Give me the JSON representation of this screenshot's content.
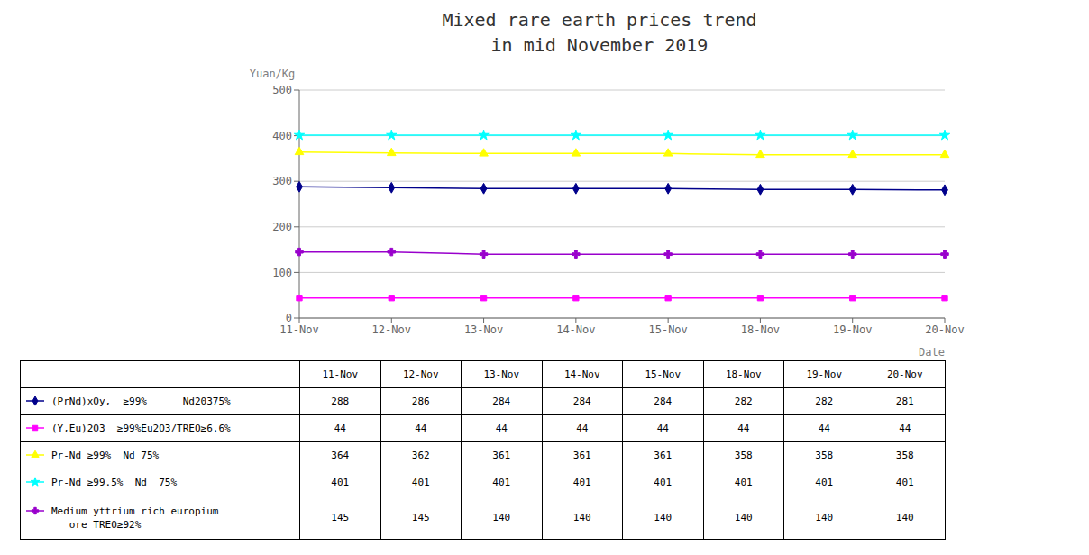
{
  "chart_data": {
    "type": "line",
    "title": "Mixed rare earth prices trend\nin mid November 2019",
    "x_label": "Date",
    "y_label": "Yuan/Kg",
    "categories": [
      "11-Nov",
      "12-Nov",
      "13-Nov",
      "14-Nov",
      "15-Nov",
      "18-Nov",
      "19-Nov",
      "20-Nov"
    ],
    "series": [
      {
        "name": "(PrNd)xOy,  ≥99%      Nd20375%",
        "color": "#00008B",
        "marker": "diamond",
        "values": [
          288,
          286,
          284,
          284,
          284,
          282,
          282,
          281
        ]
      },
      {
        "name": "(Y,Eu)2O3  ≥99%Eu2O3/TREO≥6.6%",
        "color": "#ff00ff",
        "marker": "square",
        "values": [
          44,
          44,
          44,
          44,
          44,
          44,
          44,
          44
        ]
      },
      {
        "name": "Pr-Nd ≥99%  Nd 75%",
        "color": "#ffff00",
        "marker": "triangle",
        "values": [
          364,
          362,
          361,
          361,
          361,
          358,
          358,
          358
        ]
      },
      {
        "name": "Pr-Nd ≥99.5%  Nd  75%",
        "color": "#00ffff",
        "marker": "star",
        "values": [
          401,
          401,
          401,
          401,
          401,
          401,
          401,
          401
        ]
      },
      {
        "name": "Medium yttrium rich europium\n   ore TREO≥92%",
        "color": "#9900cc",
        "marker": "cross",
        "values": [
          145,
          145,
          140,
          140,
          140,
          140,
          140,
          140
        ]
      }
    ],
    "ylim": [
      0,
      500
    ],
    "yticks": [
      0,
      100,
      200,
      300,
      400,
      500
    ],
    "grid": true,
    "legend": "bottom"
  }
}
